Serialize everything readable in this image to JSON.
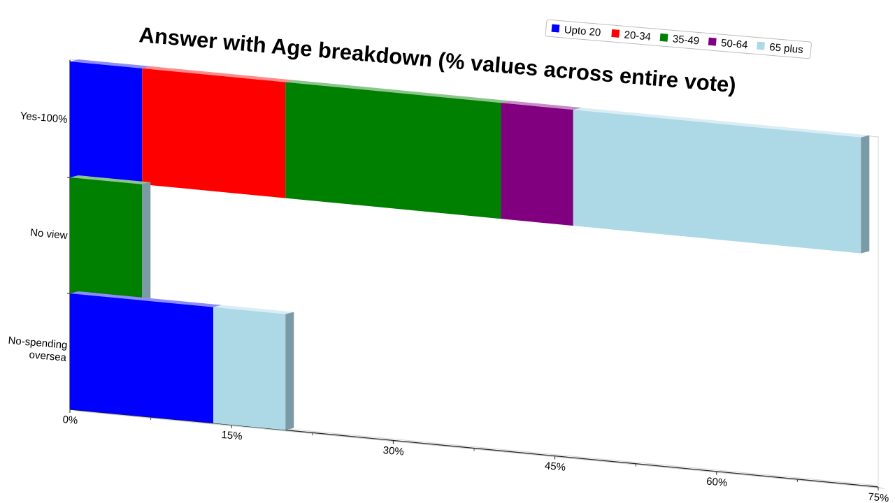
{
  "chart_data": {
    "type": "bar",
    "orientation": "horizontal",
    "stacked": true,
    "title": "Answer with Age breakdown (% values across entire vote)",
    "categories": [
      "Yes-100%",
      "No view",
      "No-spending oversea"
    ],
    "category_lines": [
      [
        "Yes-100%"
      ],
      [
        "No view"
      ],
      [
        "No-spending",
        "oversea"
      ]
    ],
    "series": [
      {
        "name": "Upto 20",
        "color": "#0000ff",
        "values": [
          6.7,
          0,
          13.3
        ]
      },
      {
        "name": "20-34",
        "color": "#ff0000",
        "values": [
          13.3,
          0,
          0
        ]
      },
      {
        "name": "35-49",
        "color": "#008000",
        "values": [
          20,
          6.7,
          0
        ]
      },
      {
        "name": "50-64",
        "color": "#800080",
        "values": [
          6.7,
          0,
          0
        ]
      },
      {
        "name": "65 plus",
        "color": "#add8e6",
        "values": [
          26.7,
          0,
          6.7
        ]
      }
    ],
    "xlim": [
      0,
      75
    ],
    "x_ticks": [
      "0%",
      "15%",
      "30%",
      "45%",
      "60%",
      "75%"
    ],
    "xlabel": "",
    "ylabel": "",
    "legend_position": "top-right",
    "grid": false
  }
}
